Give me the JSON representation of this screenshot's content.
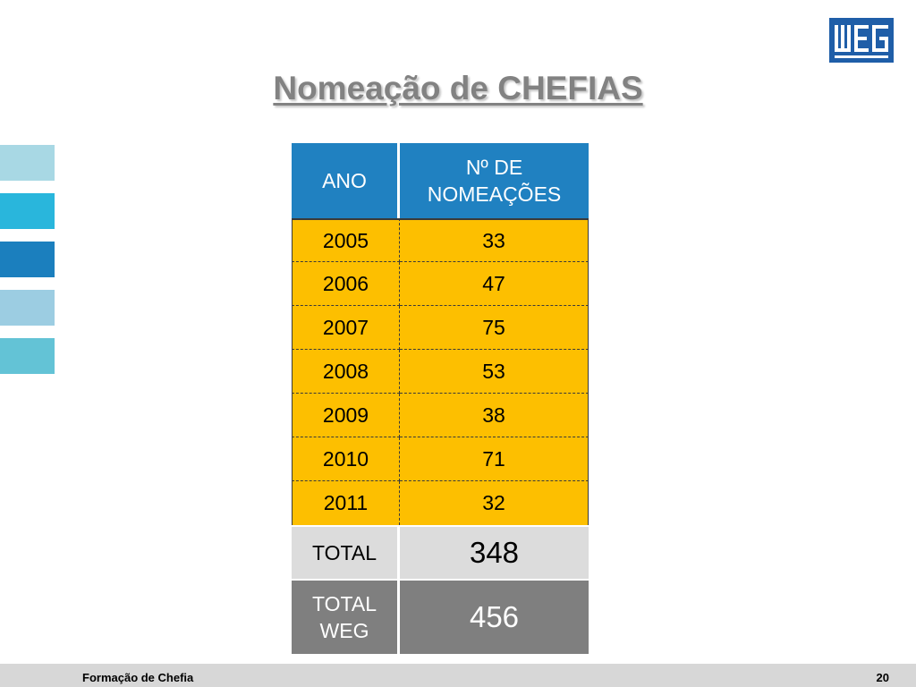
{
  "slide": {
    "title": "Nomeação de CHEFIAS",
    "page_number": "20",
    "footer_text": "Formação de Chefia",
    "logo_text": "WEG"
  },
  "table": {
    "headers": [
      "ANO",
      "Nº DE NOMEAÇÕES"
    ],
    "rows": [
      {
        "year": "2005",
        "count": "33"
      },
      {
        "year": "2006",
        "count": "47"
      },
      {
        "year": "2007",
        "count": "75"
      },
      {
        "year": "2008",
        "count": "53"
      },
      {
        "year": "2009",
        "count": "38"
      },
      {
        "year": "2010",
        "count": "71"
      },
      {
        "year": "2011",
        "count": "32"
      }
    ],
    "total": {
      "label": "TOTAL",
      "value": "348"
    },
    "total_weg": {
      "label": "TOTAL WEG",
      "value": "456"
    }
  },
  "colors": {
    "header_bg": "#2081c1",
    "row_bg": "#fdbf00",
    "total_bg": "#dcdcdc",
    "total_weg_bg": "#7f7f7f",
    "logo": "#1f5ea8"
  }
}
